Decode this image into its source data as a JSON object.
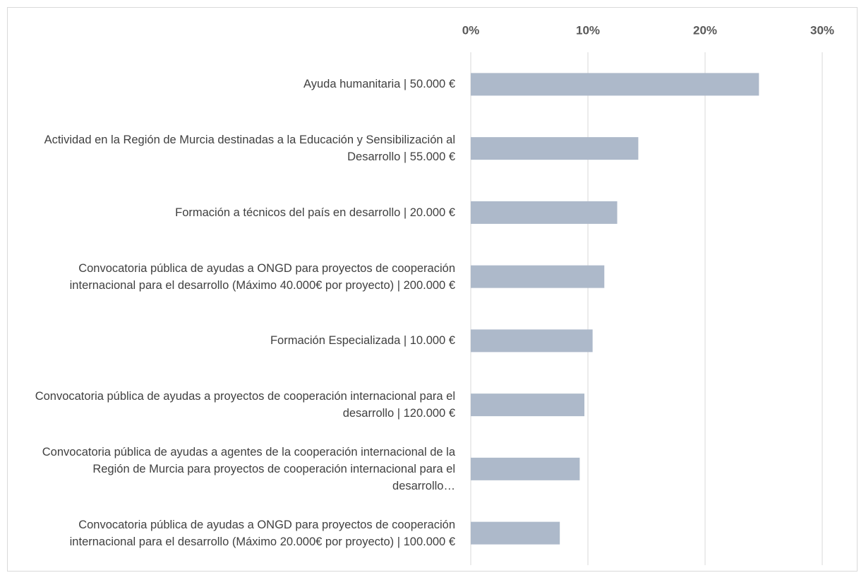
{
  "chart_data": {
    "type": "hbar",
    "categories": [
      "Ayuda humanitaria | 50.000 €",
      "Actividad en la Región de Murcia destinadas a la Educación y Sensibilización al Desarrollo | 55.000 €",
      "Formación a técnicos del país en desarrollo | 20.000 €",
      "Convocatoria pública de ayudas a ONGD para proyectos de cooperación internacional para el desarrollo (Máximo 40.000€ por proyecto) | 200.000 €",
      "Formación Especializada | 10.000 €",
      "Convocatoria pública de ayudas a proyectos de cooperación internacional para el desarrollo | 120.000 €",
      "Convocatoria pública de ayudas a agentes de la cooperación internacional de la Región de Murcia para proyectos de cooperación internacional para el desarrollo…",
      "Convocatoria pública de ayudas a ONGD para proyectos de cooperación internacional para el desarrollo (Máximo 20.000€ por proyecto)  | 100.000 €"
    ],
    "values": [
      24.6,
      14.3,
      12.5,
      11.4,
      10.4,
      9.7,
      9.3,
      7.6
    ],
    "color": "#adb9ca",
    "xlim": [
      0,
      30
    ],
    "xticks": [
      {
        "value": 0,
        "label": "0%"
      },
      {
        "value": 10,
        "label": "10%"
      },
      {
        "value": 20,
        "label": "20%"
      },
      {
        "value": 30,
        "label": "30%"
      }
    ],
    "grid": true
  }
}
